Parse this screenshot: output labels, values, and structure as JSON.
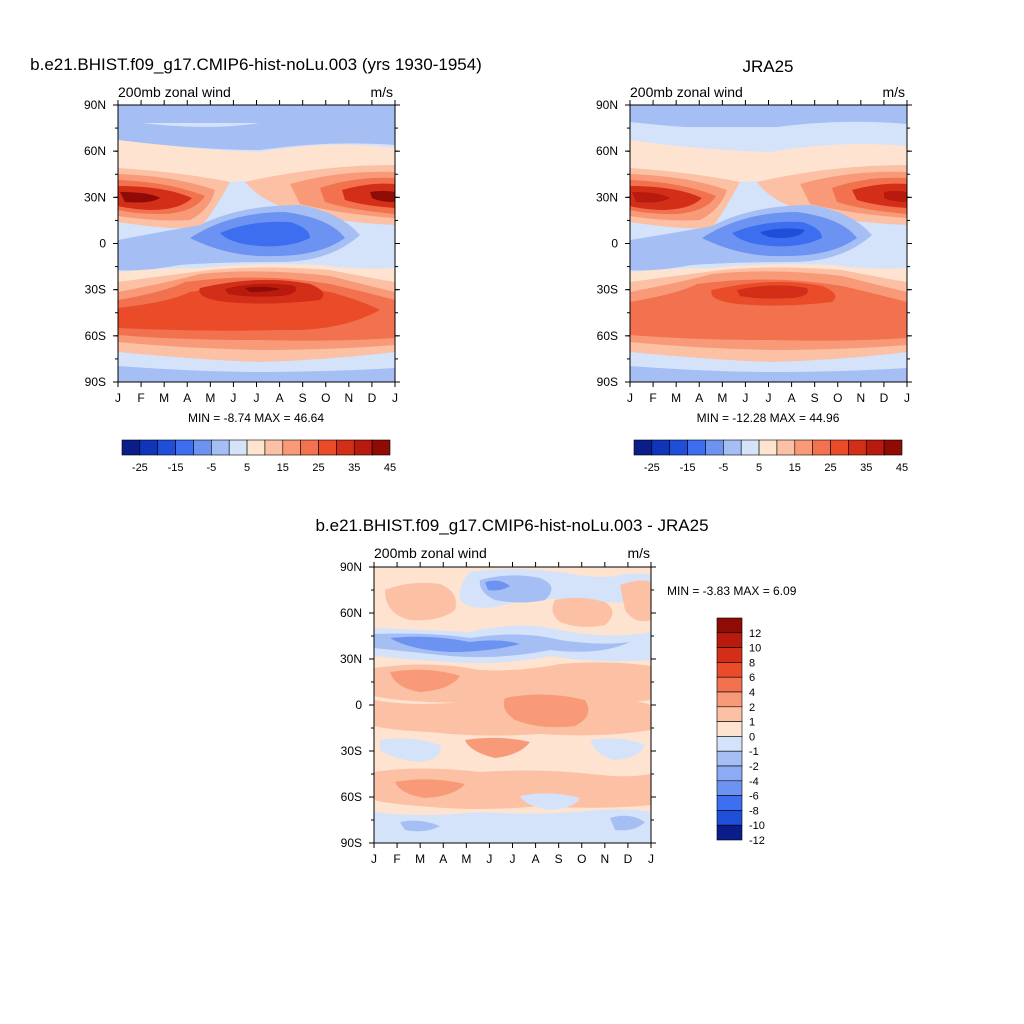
{
  "chart_data": [
    {
      "type": "heatmap",
      "title": "b.e21.BHIST.f09_g17.CMIP6-hist-noLu.003 (yrs 1930-1954)",
      "subtitle_left": "200mb zonal wind",
      "subtitle_right": "m/s",
      "x_ticks": [
        "J",
        "F",
        "M",
        "A",
        "M",
        "J",
        "J",
        "A",
        "S",
        "O",
        "N",
        "D",
        "J"
      ],
      "y_ticks": [
        "90N",
        "60N",
        "30N",
        "0",
        "30S",
        "60S",
        "90S"
      ],
      "ylim": [
        -90,
        90
      ],
      "stats": "MIN =  -8.74 MAX =  46.64",
      "colorbar_labels": [
        "-25",
        "-15",
        "-5",
        "5",
        "15",
        "25",
        "35",
        "45"
      ],
      "features": [
        {
          "kind": "jet",
          "lat": 28,
          "month": 1,
          "value": 45
        },
        {
          "kind": "jet",
          "lat": 30,
          "month": 12,
          "value": 42
        },
        {
          "kind": "jet",
          "lat": -28,
          "month": 7,
          "value": 46
        },
        {
          "kind": "band",
          "lat": -50,
          "value": 32
        },
        {
          "kind": "easterly",
          "lat": 5,
          "month": 7.5,
          "value": -8
        }
      ]
    },
    {
      "type": "heatmap",
      "title": "JRA25",
      "subtitle_left": "200mb zonal wind",
      "subtitle_right": "m/s",
      "x_ticks": [
        "J",
        "F",
        "M",
        "A",
        "M",
        "J",
        "J",
        "A",
        "S",
        "O",
        "N",
        "D",
        "J"
      ],
      "y_ticks": [
        "90N",
        "60N",
        "30N",
        "0",
        "30S",
        "60S",
        "90S"
      ],
      "ylim": [
        -90,
        90
      ],
      "stats": "MIN = -12.28 MAX =  44.96",
      "colorbar_labels": [
        "-25",
        "-15",
        "-5",
        "5",
        "15",
        "25",
        "35",
        "45"
      ],
      "features": [
        {
          "kind": "jet",
          "lat": 28,
          "month": 1,
          "value": 43
        },
        {
          "kind": "jet",
          "lat": 30,
          "month": 12,
          "value": 40
        },
        {
          "kind": "jet",
          "lat": -28,
          "month": 7,
          "value": 44
        },
        {
          "kind": "band",
          "lat": -50,
          "value": 28
        },
        {
          "kind": "easterly",
          "lat": 5,
          "month": 7.5,
          "value": -12
        }
      ]
    },
    {
      "type": "heatmap",
      "title": "b.e21.BHIST.f09_g17.CMIP6-hist-noLu.003 - JRA25",
      "subtitle_left": "200mb zonal wind",
      "subtitle_right": "m/s",
      "x_ticks": [
        "J",
        "F",
        "M",
        "A",
        "M",
        "J",
        "J",
        "A",
        "S",
        "O",
        "N",
        "D",
        "J"
      ],
      "y_ticks": [
        "90N",
        "60N",
        "30N",
        "0",
        "30S",
        "60S",
        "90S"
      ],
      "ylim": [
        -90,
        90
      ],
      "stats": "MIN =  -3.83 MAX =   6.09",
      "colorbar_labels": [
        "12",
        "10",
        "8",
        "6",
        "4",
        "2",
        "1",
        "0",
        "-1",
        "-2",
        "-4",
        "-6",
        "-8",
        "-10",
        "-12"
      ]
    }
  ],
  "colors": {
    "full_scale": [
      "#0a1d8a",
      "#1035b8",
      "#1f4fd8",
      "#3d6ef0",
      "#6d93f2",
      "#a5bff5",
      "#d4e3fa",
      "#fde3d0",
      "#fcc0a4",
      "#f89a77",
      "#f2714e",
      "#ea4c2a",
      "#d32e17",
      "#b81a0d",
      "#8e0b06"
    ],
    "diff_scale": [
      "#8e0b06",
      "#b81a0d",
      "#d32e17",
      "#ea4c2a",
      "#f2714e",
      "#f89a77",
      "#fcc0a4",
      "#fde3d0",
      "#d4e3fa",
      "#a5bff5",
      "#8cabf4",
      "#6d93f2",
      "#3d6ef0",
      "#1f4fd8",
      "#0a1d8a"
    ]
  }
}
